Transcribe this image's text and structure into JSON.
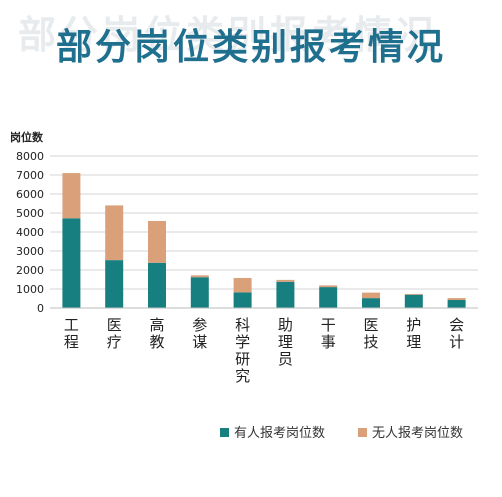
{
  "header": {
    "title": "部分岗位类别报考情况",
    "ghost_title": "部分岗位类别报考情况"
  },
  "chart_data": {
    "type": "bar",
    "stacked": true,
    "title": "部分岗位类别报考情况",
    "ylabel": "岗位数",
    "xlabel": "",
    "ylim": [
      0,
      8000
    ],
    "yticks": [
      0,
      1000,
      2000,
      3000,
      4000,
      5000,
      6000,
      7000,
      8000
    ],
    "categories": [
      "工程",
      "医疗",
      "高教",
      "参谋",
      "科学研究",
      "助理员",
      "干事",
      "医技",
      "护理",
      "会计"
    ],
    "series": [
      {
        "name": "有人报考岗位数",
        "color": "#177f80",
        "values": [
          4720,
          2520,
          2380,
          1620,
          820,
          1380,
          1100,
          520,
          700,
          420
        ]
      },
      {
        "name": "无人报考岗位数",
        "color": "#d9a07a",
        "values": [
          2380,
          2880,
          2200,
          100,
          760,
          100,
          90,
          290,
          40,
          100
        ]
      }
    ],
    "grid": true,
    "legend_position": "bottom-right"
  }
}
